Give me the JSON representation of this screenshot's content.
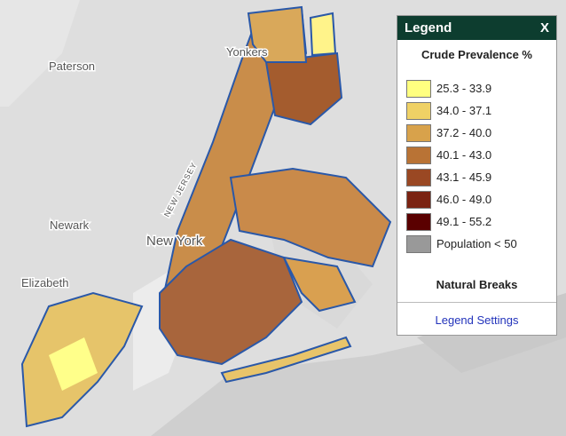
{
  "places": [
    "Paterson",
    "Yonkers",
    "Newark",
    "New York",
    "Elizabeth",
    "NEW JERSEY"
  ],
  "legend": {
    "title": "Legend",
    "close": "X",
    "subtitle": "Crude Prevalence %",
    "items": [
      {
        "label": "25.3 - 33.9",
        "color": "#ffff80"
      },
      {
        "label": "34.0 - 37.1",
        "color": "#efd165"
      },
      {
        "label": "37.2 - 40.0",
        "color": "#d8a24b"
      },
      {
        "label": "40.1 - 43.0",
        "color": "#b97335"
      },
      {
        "label": "43.1 - 45.9",
        "color": "#9a4823"
      },
      {
        "label": "46.0 - 49.0",
        "color": "#7b2312"
      },
      {
        "label": "49.1 - 55.2",
        "color": "#5a0000"
      },
      {
        "label": "Population < 50",
        "color": "#999999"
      }
    ],
    "method": "Natural Breaks",
    "settings": "Legend Settings"
  }
}
